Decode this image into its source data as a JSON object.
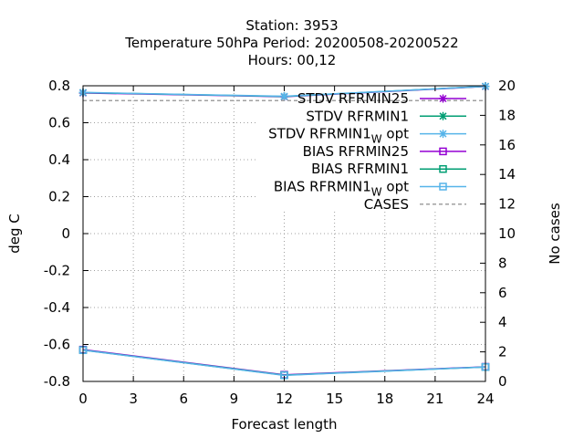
{
  "chart_data": {
    "type": "line",
    "title_lines": [
      "Station:      3953",
      "Temperature 50hPa   Period: 20200508-20200522",
      "Hours:  00,12"
    ],
    "xlabel": "Forecast length",
    "ylabel": "deg C",
    "y2label": "No cases",
    "xlim": [
      0,
      24
    ],
    "ylim": [
      -0.8,
      0.8
    ],
    "y2lim": [
      0,
      20
    ],
    "xticks": [
      0,
      3,
      6,
      9,
      12,
      15,
      18,
      21,
      24
    ],
    "yticks": [
      -0.8,
      -0.6,
      -0.4,
      -0.2,
      0,
      0.2,
      0.4,
      0.6,
      0.8
    ],
    "y2ticks": [
      0,
      2,
      4,
      6,
      8,
      10,
      12,
      14,
      16,
      18,
      20
    ],
    "grid": true,
    "legend_position": "top-right",
    "series": [
      {
        "name": "STDV RFRMIN25",
        "axis": "y",
        "marker": "x",
        "color": "#9400d3",
        "x": [
          0,
          12,
          24
        ],
        "y": [
          0.761,
          0.741,
          0.796
        ]
      },
      {
        "name": "STDV RFRMIN1",
        "axis": "y",
        "marker": "x",
        "color": "#009e73",
        "x": [
          0,
          12,
          24
        ],
        "y": [
          0.763,
          0.742,
          0.797
        ]
      },
      {
        "name": "STDV RFRMIN1",
        "name_sub": "W",
        "name_suffix": "opt",
        "axis": "y",
        "marker": "x",
        "color": "#56b4e9",
        "x": [
          0,
          12,
          24
        ],
        "y": [
          0.764,
          0.743,
          0.797
        ]
      },
      {
        "name": "BIAS RFRMIN25",
        "axis": "y",
        "marker": "square",
        "color": "#9400d3",
        "x": [
          0,
          12,
          24
        ],
        "y": [
          -0.628,
          -0.764,
          -0.721
        ]
      },
      {
        "name": "BIAS RFRMIN1",
        "axis": "y",
        "marker": "square",
        "color": "#009e73",
        "x": [
          0,
          12,
          24
        ],
        "y": [
          -0.63,
          -0.766,
          -0.722
        ]
      },
      {
        "name": "BIAS RFRMIN1",
        "name_sub": "W",
        "name_suffix": "opt",
        "axis": "y",
        "marker": "square",
        "color": "#56b4e9",
        "x": [
          0,
          12,
          24
        ],
        "y": [
          -0.631,
          -0.767,
          -0.722
        ]
      },
      {
        "name": "CASES",
        "axis": "y2",
        "marker": "none",
        "dash": true,
        "color": "#a0a0a0",
        "x": [
          0,
          12,
          24
        ],
        "y": [
          19,
          19,
          19
        ]
      }
    ]
  }
}
